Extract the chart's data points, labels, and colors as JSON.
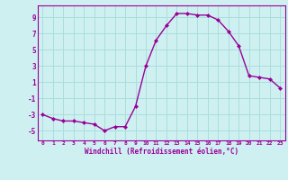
{
  "x": [
    0,
    1,
    2,
    3,
    4,
    5,
    6,
    7,
    8,
    9,
    10,
    11,
    12,
    13,
    14,
    15,
    16,
    17,
    18,
    19,
    20,
    21,
    22,
    23
  ],
  "y": [
    -3,
    -3.5,
    -3.8,
    -3.8,
    -4.0,
    -4.2,
    -5.0,
    -4.5,
    -4.5,
    -2.0,
    3.0,
    6.2,
    8.0,
    9.5,
    9.5,
    9.3,
    9.3,
    8.7,
    7.3,
    5.5,
    1.8,
    1.6,
    1.4,
    0.3
  ],
  "line_color": "#990099",
  "marker": "D",
  "marker_size": 2.0,
  "background_color": "#cff0f0",
  "grid_color": "#aadddd",
  "xlabel": "Windchill (Refroidissement éolien,°C)",
  "xlabel_color": "#990099",
  "tick_color": "#990099",
  "ylabel_ticks": [
    -5,
    -3,
    -1,
    1,
    3,
    5,
    7,
    9
  ],
  "xtick_labels": [
    "0",
    "1",
    "2",
    "3",
    "4",
    "5",
    "6",
    "7",
    "8",
    "9",
    "10",
    "11",
    "12",
    "13",
    "14",
    "15",
    "16",
    "17",
    "18",
    "19",
    "20",
    "21",
    "22",
    "23"
  ],
  "ylim": [
    -6.2,
    10.5
  ],
  "xlim": [
    -0.5,
    23.5
  ],
  "title": ""
}
